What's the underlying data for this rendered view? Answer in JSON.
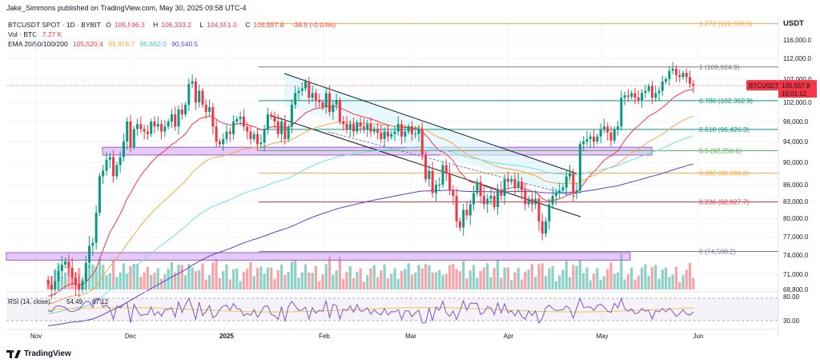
{
  "publisher": "Jake_Simmons published on TradingView.com, May 30, 2025 09:58 UTC-4",
  "legend": {
    "symbol": "BTCUSDT SPOT · 1D · BYBIT",
    "open_label": "O",
    "open": "105,596.3",
    "high_label": "H",
    "high": "106,333.2",
    "low_label": "L",
    "low": "104,591.0",
    "close_label": "C",
    "close": "105,557.8",
    "change": "-38.5 (-0.04%)",
    "vol_label": "Vol · BTC",
    "vol": "7.27 K",
    "ema_label": "EMA 20/50/100/200",
    "ema20": "105,520.4",
    "ema50": "99,878.7",
    "ema100": "95,650.0",
    "ema200": "90,540.5"
  },
  "currency": "USDT",
  "brand": "TradingView",
  "colors": {
    "up": "#089981",
    "down": "#f23645",
    "ema20": "#f23645",
    "ema50": "#f7a541",
    "ema100": "#6ee0e6",
    "ema200": "#5b3fd1",
    "zone": "#c58ef0",
    "trendline": "#131722"
  },
  "chart_data": {
    "type": "candlestick",
    "y_ticks": [
      "116,000.0",
      "112,000.0",
      "107,000.0",
      "102,000.0",
      "98,000.0",
      "94,000.0",
      "90,000.0",
      "86,000.0",
      "83,000.0",
      "80,000.0",
      "77,000.0",
      "74,000.0",
      "71,000.0",
      "68,800.0"
    ],
    "x_ticks": [
      "Nov",
      "Dec",
      "2025",
      "Feb",
      "Mar",
      "Apr",
      "May",
      "Jun"
    ],
    "fib_levels": [
      {
        "label": "1.272 (119,536.5)",
        "value": 119536.5,
        "color": "#f7a541"
      },
      {
        "label": "1 (109,924.9)",
        "value": 109924.9,
        "color": "#787b86"
      },
      {
        "label": "0.786 (102,362.9)",
        "value": 102362.9,
        "color": "#089981"
      },
      {
        "label": "0.618 (96,426.3)",
        "value": 96426.3,
        "color": "#089981"
      },
      {
        "label": "0.5 (92,256.6)",
        "value": 92256.6,
        "color": "#4caf50"
      },
      {
        "label": "0.382 (88,086.8)",
        "value": 88086.8,
        "color": "#f7a541"
      },
      {
        "label": "0.236 (82,927.7)",
        "value": 82927.7,
        "color": "#f23645"
      },
      {
        "label": "0 (74,588.2)",
        "value": 74588.2,
        "color": "#787b86"
      }
    ],
    "price_tag": {
      "symbol": "BTCUSDT",
      "price": "105,557.8",
      "countdown": "10:01:12"
    },
    "rsi": {
      "label": "RSI (14, close)",
      "value": "54.49",
      "ma_value": "67.12",
      "levels": [
        "80.00",
        "30.00"
      ]
    },
    "closes": [
      69500,
      68800,
      70000,
      71500,
      72500,
      73000,
      72000,
      70500,
      69500,
      68800,
      70000,
      72800,
      75500,
      76000,
      81000,
      87500,
      88500,
      90500,
      91000,
      87500,
      89500,
      91000,
      94000,
      98000,
      93000,
      96500,
      97500,
      96500,
      96000,
      95500,
      98000,
      97000,
      97500,
      96000,
      97000,
      98000,
      99500,
      97000,
      100500,
      99500,
      101500,
      106000,
      106500,
      102000,
      104500,
      101500,
      100000,
      101000,
      97000,
      94000,
      93500,
      94500,
      96000,
      95500,
      98000,
      98500,
      99000,
      97000,
      96000,
      94500,
      95500,
      93500,
      93800,
      96500,
      99500,
      99000,
      98000,
      95500,
      98000,
      94500,
      97000,
      101500,
      104000,
      104500,
      105000,
      106500,
      103000,
      104000,
      102500,
      102000,
      101000,
      104000,
      100000,
      101500,
      102500,
      98000,
      97500,
      96500,
      97500,
      96000,
      97800,
      97000,
      96500,
      97500,
      96000,
      96500,
      95800,
      94500,
      96000,
      95000,
      95500,
      96000,
      97500,
      95000,
      96000,
      97000,
      95500,
      95500,
      96500,
      91500,
      87000,
      88500,
      84500,
      86000,
      86000,
      89500,
      88000,
      85000,
      84000,
      79500,
      78500,
      81500,
      80500,
      82500,
      84500,
      86500,
      84000,
      82500,
      83500,
      84000,
      82000,
      85000,
      84000,
      87000,
      86500,
      87000,
      85500,
      86500,
      85000,
      82500,
      83500,
      82500,
      83500,
      79500,
      77500,
      79500,
      82500,
      84000,
      84500,
      85000,
      85500,
      87500,
      88000,
      84500,
      85000,
      93500,
      94000,
      94500,
      95000,
      94000,
      95000,
      96500,
      97000,
      95800,
      94200,
      96500,
      97000,
      103000,
      103500,
      103200,
      104000,
      103000,
      102500,
      104000,
      104500,
      105500,
      103000,
      104000,
      104500,
      106500,
      107000,
      109000,
      109500,
      108000,
      107500,
      108500,
      107500,
      106000,
      105600
    ]
  }
}
